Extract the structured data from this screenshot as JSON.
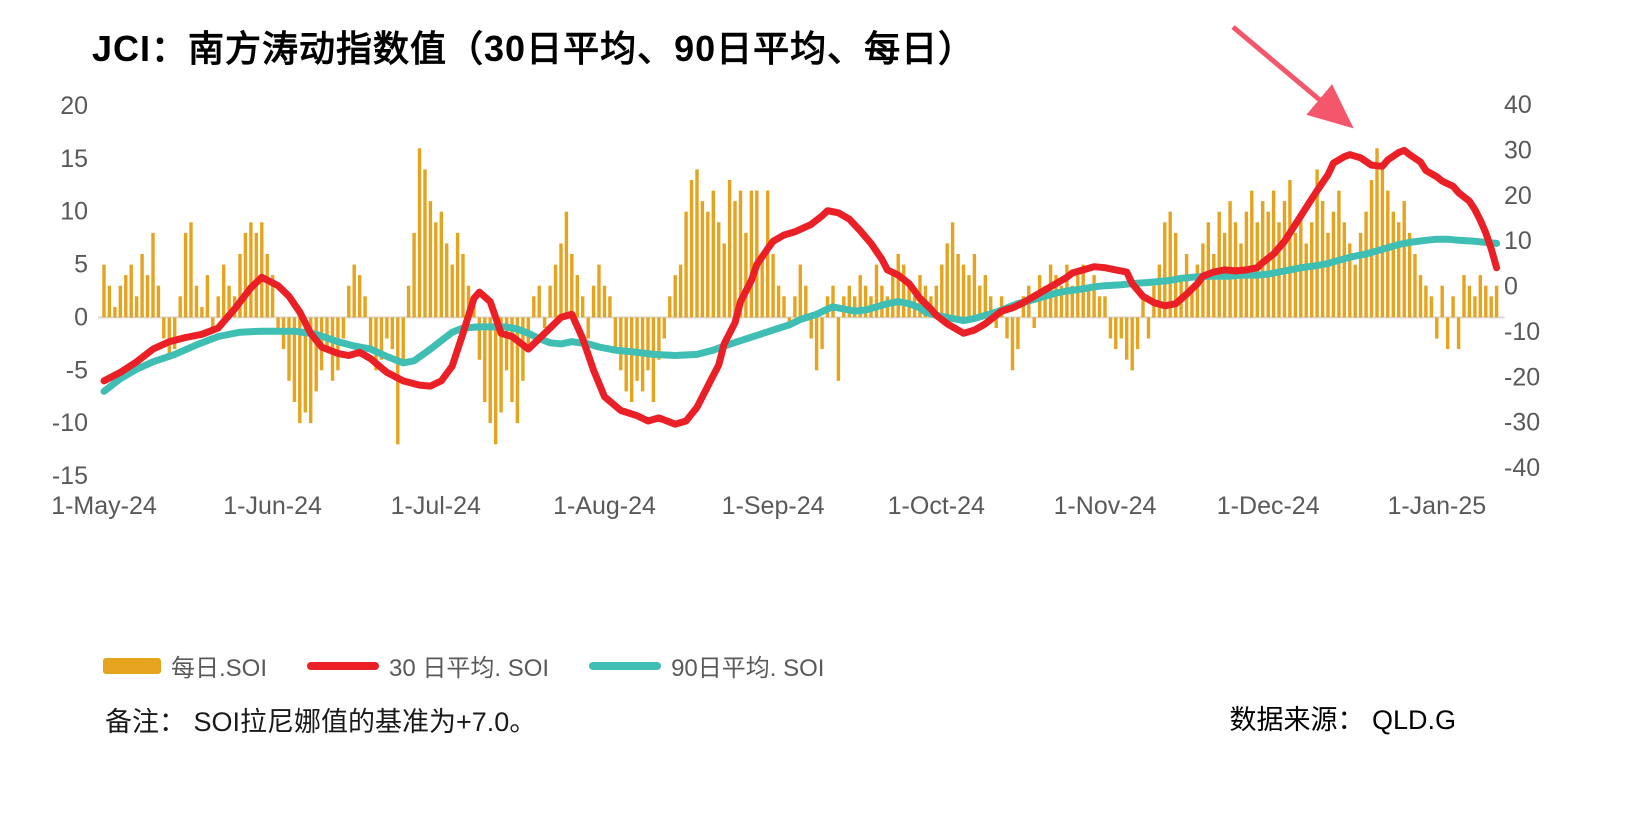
{
  "title": "JCI：南方涛动指数值（30日平均、90日平均、每日）",
  "note": "备注： SOI拉尼娜值的基准为+7.0。",
  "source": "数据来源： QLD.G",
  "legend": [
    {
      "label": "每日.SOI"
    },
    {
      "label": "30 日平均. SOI"
    },
    {
      "label": "90日平均. SOI"
    }
  ],
  "colors": {
    "bar": "#E6A41E",
    "line30": "#EB2027",
    "line90": "#3FBEB3",
    "arrow": "#F4566B",
    "axis_text": "#595959",
    "grid": "#D9D9D9"
  },
  "chart_data": {
    "type": "bar",
    "subtype": "combo-bar-plus-lines",
    "title": "JCI：南方涛动指数值（30日平均、90日平均、每日）",
    "x_start_date": "1-May-24",
    "x_tick_labels": [
      "1-May-24",
      "1-Jun-24",
      "1-Jul-24",
      "1-Aug-24",
      "1-Sep-24",
      "1-Oct-24",
      "1-Nov-24",
      "1-Dec-24",
      "1-Jan-25"
    ],
    "x_tick_day_index": [
      0,
      31,
      61,
      92,
      123,
      153,
      184,
      214,
      245
    ],
    "left_axis": {
      "ticks": [
        20,
        15,
        10,
        5,
        0,
        -5,
        -10,
        -15
      ],
      "range": [
        -15,
        20
      ]
    },
    "right_axis": {
      "ticks": [
        40,
        30,
        20,
        10,
        0,
        -10,
        -20,
        -30,
        -40
      ],
      "range": [
        -40,
        40
      ]
    },
    "grid": "zero-line-only",
    "legend_position": "bottom-left",
    "series": [
      {
        "name": "每日.SOI",
        "type": "bar",
        "axis": "left",
        "color": "#E6A41E",
        "values": [
          5,
          3,
          1,
          3,
          4,
          5,
          2,
          6,
          4,
          8,
          3,
          -2,
          -4,
          -3,
          2,
          8,
          9,
          3,
          1,
          4,
          -1,
          2,
          5,
          3,
          2,
          6,
          8,
          9,
          8,
          9,
          6,
          4,
          -1,
          -3,
          -6,
          -8,
          -10,
          -9,
          -10,
          -7,
          -5,
          -3,
          -6,
          -5,
          -2,
          3,
          5,
          4,
          2,
          -3,
          -5,
          -4,
          -2,
          -3,
          -12,
          -4,
          3,
          8,
          16,
          14,
          11,
          9,
          10,
          7,
          5,
          8,
          6,
          3,
          2,
          -4,
          -8,
          -10,
          -12,
          -9,
          -5,
          -8,
          -10,
          -6,
          -3,
          2,
          3,
          -1,
          3,
          5,
          7,
          10,
          6,
          4,
          2,
          -2,
          3,
          5,
          3,
          2,
          -3,
          -5,
          -7,
          -8,
          -6,
          -7,
          -5,
          -8,
          -4,
          -2,
          2,
          4,
          5,
          10,
          13,
          14,
          11,
          10,
          12,
          9,
          7,
          13,
          11,
          12,
          8,
          12,
          12,
          6,
          12,
          6,
          3,
          2,
          -1,
          2,
          5,
          3,
          -2,
          -5,
          -3,
          2,
          3,
          -6,
          2,
          3,
          2,
          4,
          3,
          2,
          5,
          3,
          2,
          4,
          6,
          5,
          3,
          2,
          4,
          3,
          2,
          3,
          5,
          7,
          9,
          6,
          5,
          4,
          6,
          3,
          4,
          2,
          -1,
          2,
          -2,
          -5,
          -3,
          2,
          3,
          -1,
          4,
          3,
          5,
          4,
          3,
          5,
          3,
          4,
          5,
          3,
          4,
          2,
          2,
          -2,
          -3,
          -2,
          -4,
          -5,
          -3,
          2,
          -2,
          3,
          5,
          9,
          10,
          8,
          4,
          6,
          3,
          5,
          7,
          9,
          6,
          10,
          8,
          11,
          9,
          7,
          10,
          12,
          9,
          11,
          10,
          12,
          9,
          11,
          13,
          8,
          10,
          7,
          9,
          14,
          11,
          8,
          10,
          12,
          9,
          7,
          5,
          8,
          10,
          13,
          16,
          14,
          12,
          10,
          9,
          11,
          8,
          6,
          4,
          3,
          2,
          -2,
          3,
          -3,
          2,
          -3,
          4,
          3,
          2,
          4,
          3,
          2,
          3
        ]
      },
      {
        "name": "30 日平均. SOI",
        "type": "line",
        "axis": "left",
        "color": "#EB2027",
        "keypoints": [
          [
            0,
            -6
          ],
          [
            3,
            -5.2
          ],
          [
            6,
            -4.2
          ],
          [
            9,
            -3
          ],
          [
            12,
            -2.3
          ],
          [
            15,
            -1.9
          ],
          [
            18,
            -1.6
          ],
          [
            21,
            -1
          ],
          [
            24,
            0.8
          ],
          [
            27,
            2.8
          ],
          [
            29,
            3.8
          ],
          [
            32,
            3
          ],
          [
            34,
            2
          ],
          [
            36,
            0.5
          ],
          [
            38,
            -1.5
          ],
          [
            40,
            -2.8
          ],
          [
            43,
            -3.4
          ],
          [
            45,
            -3.6
          ],
          [
            47,
            -3.3
          ],
          [
            49,
            -3.9
          ],
          [
            52,
            -5.2
          ],
          [
            55,
            -6
          ],
          [
            58,
            -6.4
          ],
          [
            60,
            -6.5
          ],
          [
            62,
            -6
          ],
          [
            64,
            -4.6
          ],
          [
            66,
            -1.5
          ],
          [
            68,
            1.8
          ],
          [
            69,
            2.4
          ],
          [
            71,
            1.5
          ],
          [
            73,
            -1.5
          ],
          [
            75,
            -1.8
          ],
          [
            77,
            -2.6
          ],
          [
            78,
            -3
          ],
          [
            80,
            -2
          ],
          [
            82,
            -1
          ],
          [
            84,
            0
          ],
          [
            86,
            0.3
          ],
          [
            88,
            -2
          ],
          [
            90,
            -5
          ],
          [
            92,
            -7.5
          ],
          [
            95,
            -8.8
          ],
          [
            98,
            -9.3
          ],
          [
            100,
            -9.8
          ],
          [
            102,
            -9.5
          ],
          [
            105,
            -10.1
          ],
          [
            107,
            -9.8
          ],
          [
            109,
            -8.5
          ],
          [
            111,
            -6.5
          ],
          [
            113,
            -4.5
          ],
          [
            114,
            -2.5
          ],
          [
            116,
            -0.5
          ],
          [
            117,
            1.5
          ],
          [
            119,
            3.5
          ],
          [
            120,
            5
          ],
          [
            122,
            6.5
          ],
          [
            123,
            7.2
          ],
          [
            125,
            7.8
          ],
          [
            127,
            8.1
          ],
          [
            130,
            8.8
          ],
          [
            132,
            9.6
          ],
          [
            133,
            10.1
          ],
          [
            135,
            9.9
          ],
          [
            137,
            9.3
          ],
          [
            139,
            8.2
          ],
          [
            141,
            7
          ],
          [
            143,
            5.5
          ],
          [
            144,
            4.5
          ],
          [
            146,
            4
          ],
          [
            148,
            3.2
          ],
          [
            150,
            1.8
          ],
          [
            152,
            0.8
          ],
          [
            153,
            0.2
          ],
          [
            155,
            -0.6
          ],
          [
            157,
            -1.2
          ],
          [
            158,
            -1.5
          ],
          [
            160,
            -1.2
          ],
          [
            162,
            -0.6
          ],
          [
            164,
            0.2
          ],
          [
            165,
            0.6
          ],
          [
            167,
            0.9
          ],
          [
            169,
            1.4
          ],
          [
            171,
            2
          ],
          [
            173,
            2.6
          ],
          [
            175,
            3.2
          ],
          [
            177,
            3.8
          ],
          [
            178,
            4.2
          ],
          [
            180,
            4.5
          ],
          [
            182,
            4.8
          ],
          [
            184,
            4.7
          ],
          [
            186,
            4.5
          ],
          [
            188,
            4.3
          ],
          [
            189,
            3.2
          ],
          [
            191,
            2
          ],
          [
            193,
            1.4
          ],
          [
            195,
            1.1
          ],
          [
            197,
            1.3
          ],
          [
            199,
            2.2
          ],
          [
            201,
            3.2
          ],
          [
            202,
            3.9
          ],
          [
            204,
            4.3
          ],
          [
            206,
            4.5
          ],
          [
            208,
            4.4
          ],
          [
            210,
            4.5
          ],
          [
            212,
            4.7
          ],
          [
            213,
            5.2
          ],
          [
            215,
            6
          ],
          [
            217,
            7.2
          ],
          [
            219,
            8.8
          ],
          [
            221,
            10.4
          ],
          [
            223,
            12
          ],
          [
            225,
            13.5
          ],
          [
            226,
            14.6
          ],
          [
            228,
            15.2
          ],
          [
            229,
            15.4
          ],
          [
            231,
            15.1
          ],
          [
            233,
            14.4
          ],
          [
            235,
            14.3
          ],
          [
            236,
            14.9
          ],
          [
            238,
            15.6
          ],
          [
            239,
            15.8
          ],
          [
            240,
            15.4
          ],
          [
            242,
            14.7
          ],
          [
            243,
            13.9
          ],
          [
            245,
            13.3
          ],
          [
            246,
            12.9
          ],
          [
            248,
            12.4
          ],
          [
            249,
            11.8
          ],
          [
            251,
            11
          ],
          [
            252,
            10.2
          ],
          [
            253,
            9.2
          ],
          [
            254,
            8
          ],
          [
            255,
            6.5
          ],
          [
            256,
            4.7
          ]
        ]
      },
      {
        "name": "90日平均. SOI",
        "type": "line",
        "axis": "left",
        "color": "#3FBEB3",
        "keypoints": [
          [
            0,
            -7
          ],
          [
            3,
            -5.8
          ],
          [
            6,
            -4.9
          ],
          [
            9,
            -4.2
          ],
          [
            13,
            -3.5
          ],
          [
            17,
            -2.6
          ],
          [
            21,
            -1.8
          ],
          [
            25,
            -1.4
          ],
          [
            29,
            -1.3
          ],
          [
            35,
            -1.3
          ],
          [
            39,
            -1.6
          ],
          [
            43,
            -2.3
          ],
          [
            46,
            -2.7
          ],
          [
            49,
            -3
          ],
          [
            52,
            -3.7
          ],
          [
            55,
            -4.3
          ],
          [
            57,
            -4.1
          ],
          [
            60,
            -3
          ],
          [
            62,
            -2.2
          ],
          [
            64,
            -1.4
          ],
          [
            66,
            -1
          ],
          [
            69,
            -0.9
          ],
          [
            74,
            -0.9
          ],
          [
            76,
            -1.1
          ],
          [
            78,
            -1.5
          ],
          [
            80,
            -2
          ],
          [
            82,
            -2.4
          ],
          [
            84,
            -2.5
          ],
          [
            86,
            -2.3
          ],
          [
            89,
            -2.5
          ],
          [
            91,
            -2.8
          ],
          [
            94,
            -3.1
          ],
          [
            98,
            -3.3
          ],
          [
            101,
            -3.5
          ],
          [
            105,
            -3.6
          ],
          [
            109,
            -3.5
          ],
          [
            112,
            -3.1
          ],
          [
            114,
            -2.7
          ],
          [
            117,
            -2.2
          ],
          [
            120,
            -1.7
          ],
          [
            123,
            -1.2
          ],
          [
            126,
            -0.7
          ],
          [
            128,
            -0.2
          ],
          [
            131,
            0.3
          ],
          [
            133,
            0.8
          ],
          [
            134,
            1
          ],
          [
            136,
            0.8
          ],
          [
            138,
            0.6
          ],
          [
            140,
            0.7
          ],
          [
            142,
            1
          ],
          [
            144,
            1.3
          ],
          [
            146,
            1.5
          ],
          [
            148,
            1.3
          ],
          [
            150,
            0.9
          ],
          [
            151,
            0.5
          ],
          [
            153,
            0.2
          ],
          [
            155,
            0
          ],
          [
            157,
            -0.2
          ],
          [
            158,
            -0.3
          ],
          [
            160,
            -0.1
          ],
          [
            162,
            0.2
          ],
          [
            164,
            0.5
          ],
          [
            166,
            0.9
          ],
          [
            168,
            1.3
          ],
          [
            171,
            1.7
          ],
          [
            173,
            2
          ],
          [
            175,
            2.3
          ],
          [
            177,
            2.5
          ],
          [
            180,
            2.7
          ],
          [
            182,
            2.9
          ],
          [
            184,
            3
          ],
          [
            187,
            3.1
          ],
          [
            189,
            3.2
          ],
          [
            192,
            3.3
          ],
          [
            194,
            3.4
          ],
          [
            196,
            3.5
          ],
          [
            198,
            3.7
          ],
          [
            200,
            3.8
          ],
          [
            203,
            3.9
          ],
          [
            207,
            3.9
          ],
          [
            209,
            4
          ],
          [
            212,
            4
          ],
          [
            214,
            4.1
          ],
          [
            216,
            4.3
          ],
          [
            218,
            4.5
          ],
          [
            220,
            4.7
          ],
          [
            223,
            4.9
          ],
          [
            225,
            5.1
          ],
          [
            227,
            5.4
          ],
          [
            229,
            5.7
          ],
          [
            232,
            6
          ],
          [
            234,
            6.3
          ],
          [
            236,
            6.6
          ],
          [
            238,
            6.9
          ],
          [
            240,
            7.1
          ],
          [
            243,
            7.3
          ],
          [
            245,
            7.4
          ],
          [
            247,
            7.4
          ],
          [
            249,
            7.3
          ],
          [
            252,
            7.2
          ],
          [
            254,
            7.1
          ],
          [
            256,
            7
          ]
        ]
      }
    ],
    "annotation": {
      "type": "arrow",
      "color": "#F4566B",
      "from_xy": [
        1233,
        27
      ],
      "to_xy": [
        1346,
        122
      ]
    }
  }
}
